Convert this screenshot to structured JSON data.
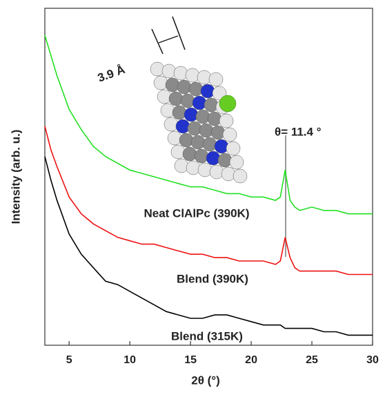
{
  "chart_data": {
    "type": "line",
    "x_label": "2θ (°)",
    "y_label": "Intensity (arb. u.)",
    "annotations": [
      "θ= 11.4 °",
      "3.9 Å"
    ],
    "x": [
      3,
      3.5,
      4,
      5,
      6,
      7,
      8,
      9,
      10,
      11,
      12,
      13,
      14,
      15,
      16,
      17,
      18,
      19,
      20,
      21,
      22,
      22.4,
      22.8,
      23.2,
      23.6,
      24,
      25,
      26,
      27,
      28,
      29,
      30
    ],
    "xlim": [
      3,
      30
    ],
    "xticks": [
      5,
      10,
      15,
      20,
      25,
      30
    ],
    "ylim": [
      0,
      100
    ],
    "series": [
      {
        "name": "Neat ClAlPc (390K)",
        "color": "#22e022",
        "values": [
          92,
          86,
          80,
          70,
          64,
          59,
          56,
          54,
          52,
          51,
          50,
          49,
          48,
          47,
          47,
          46,
          45,
          45,
          44,
          44,
          43,
          44,
          52,
          43,
          41,
          40,
          41,
          40,
          40,
          39,
          39,
          39
        ]
      },
      {
        "name": "Blend (390K)",
        "color": "#ee1111",
        "values": [
          65,
          58,
          53,
          44,
          39,
          36,
          34,
          32,
          31,
          30,
          30,
          29,
          28,
          27,
          27,
          26,
          26,
          25,
          25,
          25,
          24,
          25,
          32,
          26,
          23,
          22,
          22,
          22,
          22,
          21,
          21,
          21
        ]
      },
      {
        "name": "Blend (315K)",
        "color": "#000000",
        "values": [
          56,
          49,
          43,
          33,
          27,
          23,
          19,
          18,
          16,
          14,
          12,
          10,
          9,
          8,
          8,
          9,
          9,
          8,
          7,
          6,
          6,
          6,
          5,
          5,
          5,
          5,
          5,
          4,
          4,
          3,
          3,
          3
        ]
      }
    ]
  }
}
